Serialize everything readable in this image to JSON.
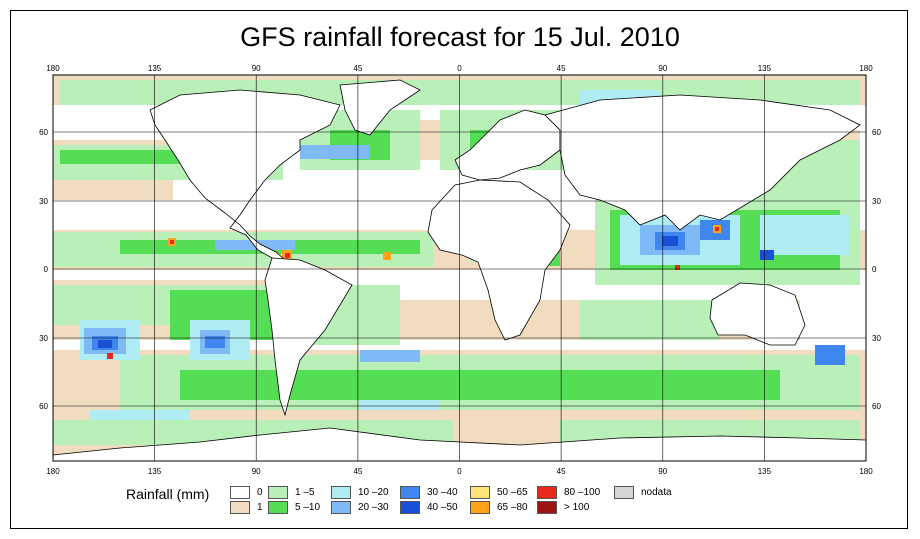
{
  "title": "GFS rainfall forecast for 15 Jul. 2010",
  "axes": {
    "lon_labels": [
      "180",
      "135",
      "90",
      "45",
      "0",
      "45",
      "90",
      "135",
      "180"
    ],
    "lat_labels": [
      "60",
      "30",
      "0",
      "30",
      "60"
    ]
  },
  "legend": {
    "title": "Rainfall (mm)",
    "items": [
      {
        "label": "0",
        "color": "#ffffff"
      },
      {
        "label": "1",
        "color": "#f1dcc0"
      },
      {
        "label": "1 –5",
        "color": "#b8f0b8"
      },
      {
        "label": "5 –10",
        "color": "#55dd55"
      },
      {
        "label": "10 –20",
        "color": "#b0ecf4"
      },
      {
        "label": "20 –30",
        "color": "#7fbaf6"
      },
      {
        "label": "30 –40",
        "color": "#3f86ef"
      },
      {
        "label": "40 –50",
        "color": "#1a4fd8"
      },
      {
        "label": "50 –65",
        "color": "#ffe27a"
      },
      {
        "label": "65 –80",
        "color": "#ffa31a"
      },
      {
        "label": "80 –100",
        "color": "#e8281c"
      },
      {
        "label": "> 100",
        "color": "#9c1414"
      },
      {
        "label": "nodata",
        "color": "#d4d4d4"
      }
    ]
  }
}
